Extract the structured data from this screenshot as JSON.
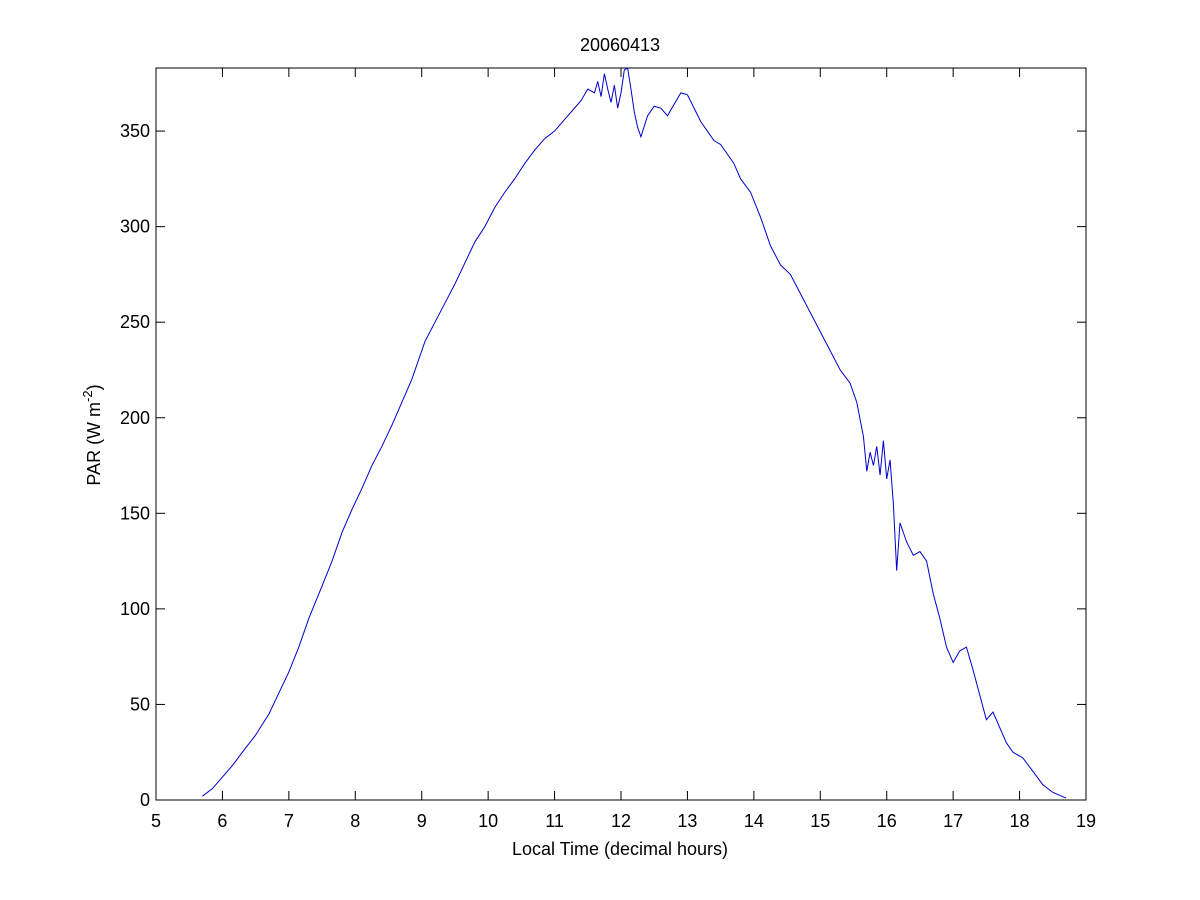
{
  "chart_data": {
    "type": "line",
    "title": "20060413",
    "xlabel": "Local Time (decimal hours)",
    "ylabel_main": "PAR (W m",
    "ylabel_sup": "-2",
    "ylabel_close": ")",
    "xlim": [
      5,
      19
    ],
    "ylim": [
      0,
      383
    ],
    "xticks": [
      5,
      6,
      7,
      8,
      9,
      10,
      11,
      12,
      13,
      14,
      15,
      16,
      17,
      18,
      19
    ],
    "yticks": [
      0,
      50,
      100,
      150,
      200,
      250,
      300,
      350
    ],
    "grid": false,
    "line_color": "#0000cc",
    "series": [
      {
        "x": [
          5.7,
          5.85,
          6.0,
          6.15,
          6.3,
          6.5,
          6.7,
          6.85,
          7.0,
          7.15,
          7.3,
          7.5,
          7.65,
          7.8,
          7.95,
          8.1,
          8.25,
          8.4,
          8.55,
          8.7,
          8.85,
          8.95,
          9.05,
          9.2,
          9.35,
          9.5,
          9.65,
          9.8,
          9.95,
          10.1,
          10.25,
          10.4,
          10.55,
          10.7,
          10.85,
          11.0,
          11.15,
          11.3,
          11.4,
          11.5,
          11.6,
          11.65,
          11.7,
          11.75,
          11.8,
          11.85,
          11.9,
          11.95,
          12.0,
          12.05,
          12.1,
          12.15,
          12.2,
          12.25,
          12.3,
          12.4,
          12.5,
          12.6,
          12.7,
          12.8,
          12.9,
          13.0,
          13.1,
          13.2,
          13.3,
          13.4,
          13.5,
          13.6,
          13.7,
          13.8,
          13.95,
          14.1,
          14.25,
          14.4,
          14.55,
          14.7,
          14.85,
          15.0,
          15.15,
          15.3,
          15.45,
          15.55,
          15.65,
          15.7,
          15.75,
          15.8,
          15.85,
          15.9,
          15.95,
          16.0,
          16.05,
          16.1,
          16.15,
          16.2,
          16.3,
          16.4,
          16.5,
          16.6,
          16.7,
          16.8,
          16.9,
          17.0,
          17.1,
          17.2,
          17.3,
          17.4,
          17.5,
          17.6,
          17.7,
          17.8,
          17.9,
          18.05,
          18.2,
          18.35,
          18.5,
          18.7
        ],
        "y": [
          2,
          6,
          12,
          18,
          25,
          34,
          45,
          56,
          67,
          80,
          95,
          112,
          125,
          140,
          152,
          163,
          175,
          185,
          196,
          208,
          220,
          230,
          240,
          250,
          260,
          270,
          281,
          292,
          300,
          310,
          318,
          325,
          333,
          340,
          346,
          350,
          356,
          362,
          366,
          372,
          370,
          376,
          368,
          380,
          372,
          365,
          374,
          362,
          370,
          382,
          383,
          372,
          360,
          352,
          347,
          358,
          363,
          362,
          358,
          364,
          370,
          369,
          362,
          355,
          350,
          345,
          343,
          338,
          333,
          325,
          318,
          305,
          290,
          280,
          275,
          265,
          255,
          245,
          235,
          225,
          218,
          208,
          190,
          172,
          182,
          175,
          185,
          170,
          188,
          168,
          178,
          155,
          120,
          145,
          135,
          128,
          130,
          125,
          108,
          95,
          80,
          72,
          78,
          80,
          68,
          55,
          42,
          46,
          38,
          30,
          25,
          22,
          15,
          8,
          4,
          1
        ]
      }
    ]
  }
}
